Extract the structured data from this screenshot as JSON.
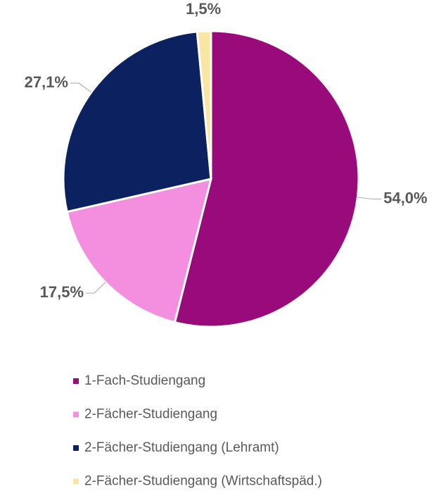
{
  "chart_data": {
    "type": "pie",
    "categories": [
      "1-Fach-Studiengang",
      "2-Fächer-Studiengang",
      "2-Fächer-Studiengang (Lehramt)",
      "2-Fächer-Studiengang (Wirtschaftspäd.)"
    ],
    "values": [
      54.0,
      17.5,
      27.1,
      1.5
    ],
    "value_labels": [
      "54,0%",
      "17,5%",
      "27,1%",
      "1,5%"
    ],
    "colors": [
      "#990a7a",
      "#f48fe0",
      "#0c2160",
      "#fbe5a2"
    ],
    "legend": "bottom"
  }
}
